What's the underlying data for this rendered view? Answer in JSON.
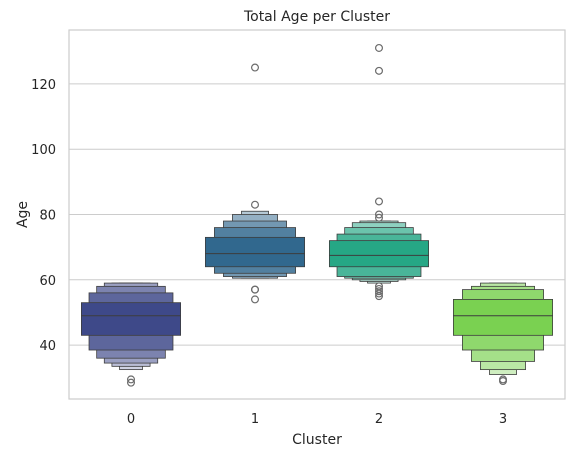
{
  "chart_data": {
    "type": "boxen",
    "title": "Total Age per Cluster",
    "xlabel": "Cluster",
    "ylabel": "Age",
    "categories": [
      "0",
      "1",
      "2",
      "3"
    ],
    "ylim": [
      23.5,
      136.5
    ],
    "yticks": [
      40,
      60,
      80,
      100,
      120
    ],
    "grid": "horizontal",
    "palette": [
      "#3e4989",
      "#31688e",
      "#26a785",
      "#7ad151"
    ],
    "boxes": [
      {
        "cluster": "0",
        "median": 49,
        "levels": [
          [
            43,
            53
          ],
          [
            38.5,
            56
          ],
          [
            36,
            58
          ],
          [
            34.5,
            59
          ],
          [
            33.5,
            59
          ],
          [
            32.5,
            59
          ]
        ],
        "outliers": [
          28.5,
          29.5
        ]
      },
      {
        "cluster": "1",
        "median": 68,
        "levels": [
          [
            64,
            73
          ],
          [
            62,
            76
          ],
          [
            61,
            78
          ],
          [
            60.5,
            80
          ],
          [
            60.5,
            81
          ]
        ],
        "outliers": [
          54,
          57,
          57,
          83,
          125
        ]
      },
      {
        "cluster": "2",
        "median": 67.5,
        "levels": [
          [
            64,
            72
          ],
          [
            61,
            74
          ],
          [
            60.5,
            76
          ],
          [
            60,
            77.5
          ],
          [
            59.5,
            78
          ],
          [
            59,
            78
          ]
        ],
        "outliers": [
          55,
          55.8,
          56.5,
          57.2,
          58,
          79,
          80,
          84,
          124,
          131
        ]
      },
      {
        "cluster": "3",
        "median": 49,
        "levels": [
          [
            43,
            54
          ],
          [
            38.5,
            57
          ],
          [
            35,
            58
          ],
          [
            32.5,
            59
          ],
          [
            31,
            59
          ]
        ],
        "outliers": [
          29,
          29.5
        ]
      }
    ]
  }
}
